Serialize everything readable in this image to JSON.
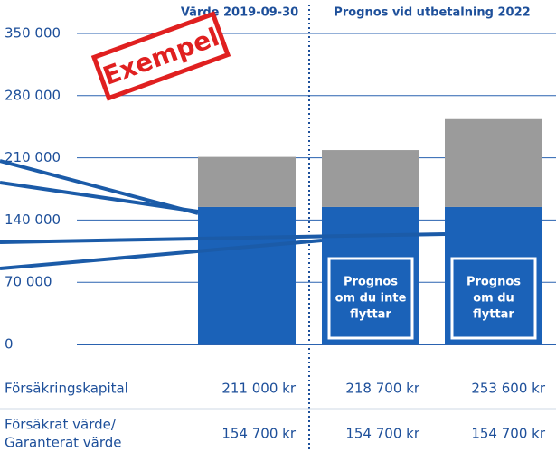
{
  "chart_data": {
    "type": "bar",
    "stacked": true,
    "categories": [
      null,
      null,
      null
    ],
    "column_headers": [
      "Värde 2019-09-30",
      "Prognos vid utbetalning 2022"
    ],
    "series": [
      {
        "color": "#1b62b8",
        "values": [
          154700,
          154700,
          154700
        ]
      },
      {
        "color": "#9b9b9b",
        "values": [
          56300,
          64000,
          98900
        ]
      }
    ],
    "ylim": [
      0,
      350000
    ],
    "yticks": [
      0,
      {
        "value": 70000,
        "label": "70 000"
      },
      {
        "value": 140000,
        "label": "140 000"
      },
      {
        "value": 210000,
        "label": "210 000"
      },
      {
        "value": 280000,
        "label": "280 000"
      },
      {
        "value": 350000,
        "label": "350 000"
      }
    ],
    "grid": true,
    "stamp": "Exempel",
    "box_labels": [
      [
        "Prognos",
        "om du inte",
        "flyttar"
      ],
      [
        "Prognos",
        "om du",
        "flyttar"
      ]
    ],
    "table": {
      "rows": [
        {
          "label": [
            "Försäkringskapital"
          ],
          "cells": [
            "211 000 kr",
            "218 700 kr",
            "253 600 kr"
          ]
        },
        {
          "label": [
            "Försäkrat värde/",
            "Garanterat värde"
          ],
          "cells": [
            "154 700 kr",
            "154 700 kr",
            "154 700 kr"
          ]
        }
      ]
    }
  }
}
